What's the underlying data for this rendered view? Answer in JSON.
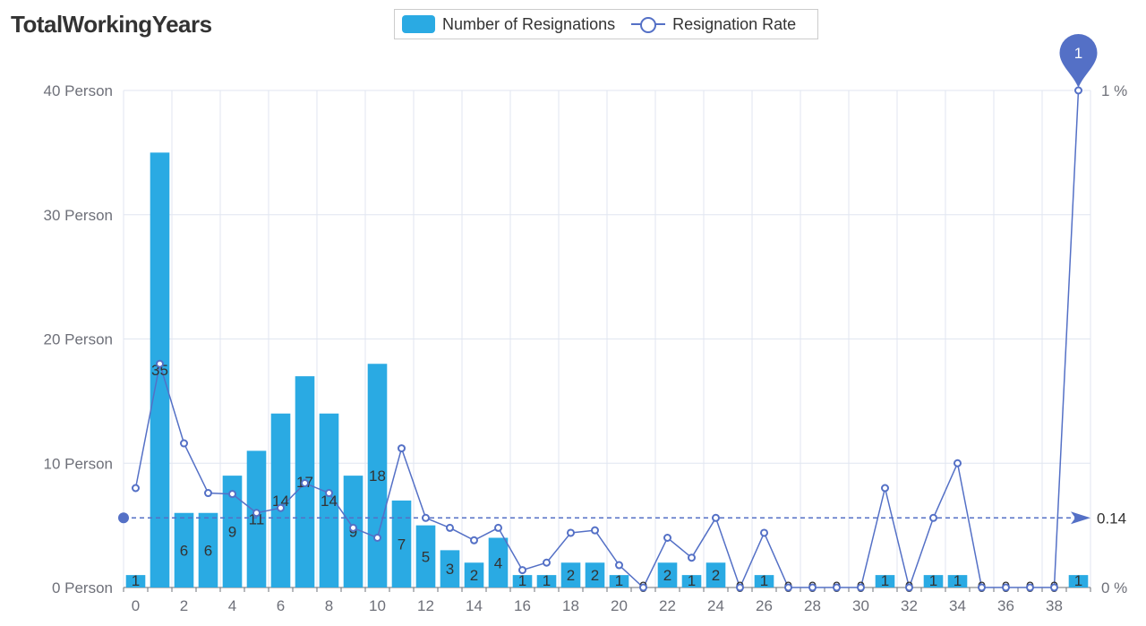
{
  "title": "TotalWorkingYears",
  "legend": {
    "bar_label": "Number of Resignations",
    "line_label": "Resignation Rate"
  },
  "colors": {
    "bar": "#2aaae3",
    "line": "#5470c6",
    "grid": "#e0e6f1",
    "axis": "#6e7079"
  },
  "chart_data": {
    "type": "bar+line",
    "categories": [
      0,
      1,
      2,
      3,
      4,
      5,
      6,
      7,
      8,
      9,
      10,
      11,
      12,
      13,
      14,
      15,
      16,
      17,
      18,
      19,
      20,
      21,
      22,
      23,
      24,
      25,
      26,
      27,
      28,
      29,
      30,
      31,
      32,
      33,
      34,
      35,
      36,
      37,
      38,
      39
    ],
    "x_tick_labels": [
      "0",
      "2",
      "4",
      "6",
      "8",
      "10",
      "12",
      "14",
      "16",
      "18",
      "20",
      "22",
      "24",
      "26",
      "28",
      "30",
      "32",
      "34",
      "36",
      "38"
    ],
    "series": [
      {
        "name": "Number of Resignations",
        "type": "bar",
        "axis": "left",
        "values": [
          1,
          35,
          6,
          6,
          9,
          11,
          14,
          17,
          14,
          9,
          18,
          7,
          5,
          3,
          2,
          4,
          1,
          1,
          2,
          2,
          1,
          0,
          2,
          1,
          2,
          0,
          1,
          0,
          0,
          0,
          0,
          1,
          0,
          1,
          1,
          0,
          0,
          0,
          0,
          1
        ]
      },
      {
        "name": "Resignation Rate",
        "type": "line",
        "axis": "right",
        "values": [
          0.2,
          0.45,
          0.29,
          0.19,
          0.188,
          0.15,
          0.16,
          0.21,
          0.19,
          0.12,
          0.1,
          0.28,
          0.14,
          0.12,
          0.095,
          0.12,
          0.035,
          0.05,
          0.11,
          0.115,
          0.045,
          0,
          0.1,
          0.06,
          0.14,
          0,
          0.11,
          0,
          0,
          0,
          0,
          0.2,
          0,
          0.14,
          0.25,
          0,
          0,
          0,
          0,
          1
        ]
      }
    ],
    "y_left": {
      "min": 0,
      "max": 40,
      "ticks": [
        "0 Person",
        "10 Person",
        "20 Person",
        "30 Person",
        "40 Person"
      ]
    },
    "y_right": {
      "min": 0,
      "max": 1,
      "ticks": [
        "0 %",
        "1 %"
      ]
    },
    "average_line": {
      "value": 0.14,
      "label": "0.14"
    },
    "max_marker": {
      "label": "1",
      "category": 39
    },
    "legend_position": "top-center",
    "grid": true
  }
}
